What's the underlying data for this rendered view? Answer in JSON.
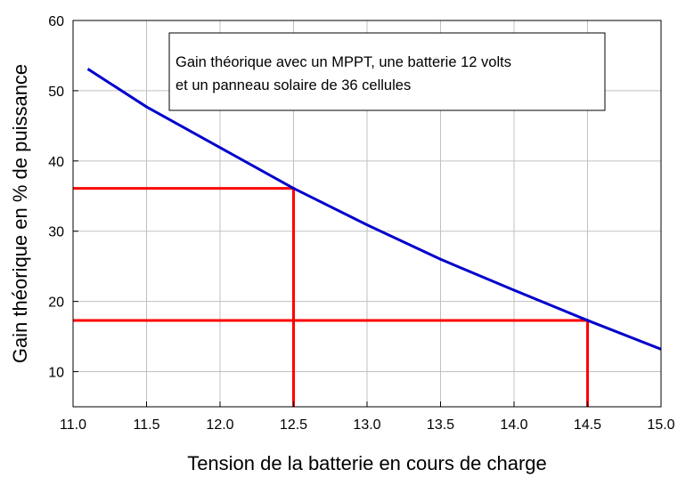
{
  "chart_data": {
    "type": "line",
    "title": "",
    "xlabel": "Tension de la batterie en cours de charge",
    "ylabel": "Gain théorique en % de puissance",
    "xlim": [
      11.0,
      15.0
    ],
    "ylim": [
      5,
      60
    ],
    "xticks": [
      "11.0",
      "11.5",
      "12.0",
      "12.5",
      "13.0",
      "13.5",
      "14.0",
      "14.5",
      "15.0"
    ],
    "yticks": [
      "10",
      "20",
      "30",
      "40",
      "50",
      "60"
    ],
    "grid": true,
    "annotation": {
      "lines": [
        "Gain théorique avec un MPPT, une batterie 12 volts",
        "et un panneau solaire de 36 cellules"
      ],
      "placement": "top-right"
    },
    "series": [
      {
        "color": "#0000cc",
        "x": [
          11.1,
          11.5,
          12.0,
          12.5,
          13.0,
          13.5,
          14.0,
          14.5,
          15.0
        ],
        "y": [
          53.1,
          47.7,
          41.9,
          36.1,
          30.9,
          26.0,
          21.6,
          17.3,
          13.2
        ]
      }
    ],
    "reference_lines": [
      {
        "color": "#ff0000",
        "x": 12.5,
        "y": 36.1
      },
      {
        "color": "#ff0000",
        "x": 14.5,
        "y": 17.3
      }
    ]
  }
}
